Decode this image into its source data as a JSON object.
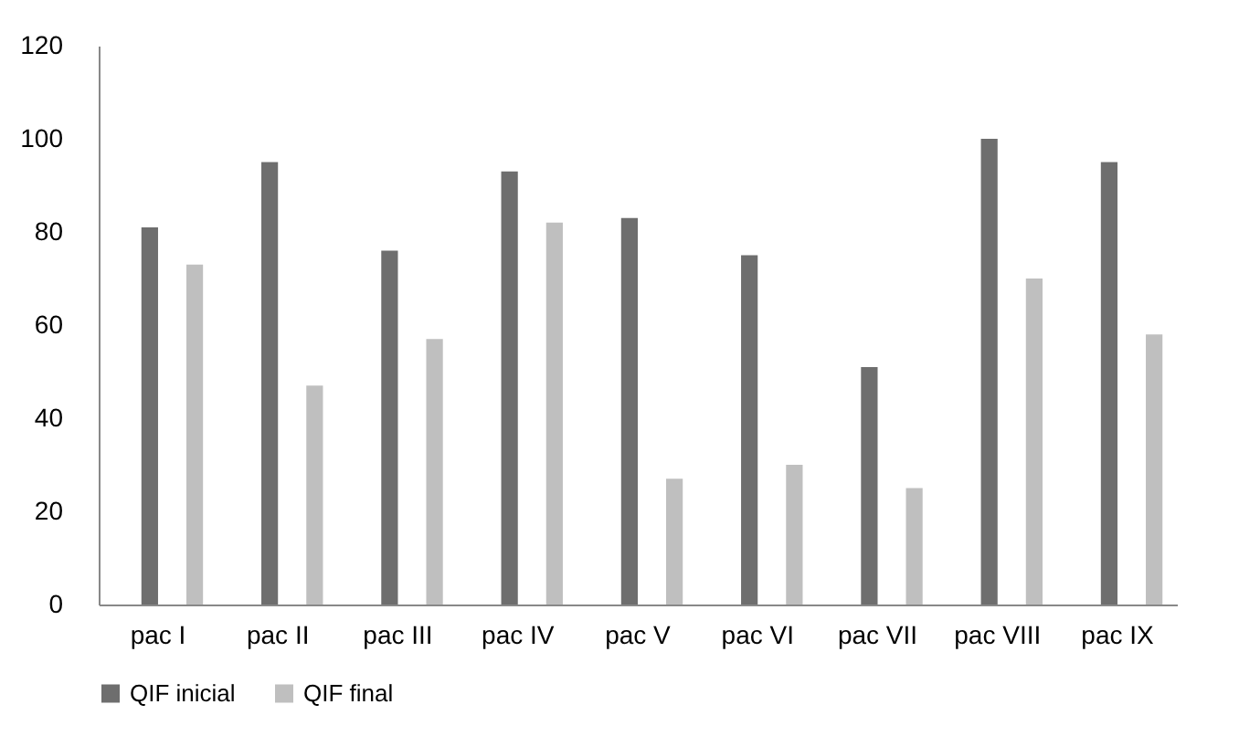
{
  "chart_data": {
    "type": "bar",
    "categories": [
      "pac I",
      "pac II",
      "pac III",
      "pac IV",
      "pac V",
      "pac VI",
      "pac VII",
      "pac VIII",
      "pac IX"
    ],
    "series": [
      {
        "name": "QIF inicial",
        "color": "#6e6e6e",
        "values": [
          81,
          95,
          76,
          93,
          83,
          75,
          51,
          100,
          95
        ]
      },
      {
        "name": "QIF final",
        "color": "#bfbfbf",
        "values": [
          73,
          47,
          57,
          82,
          27,
          30,
          25,
          70,
          58
        ]
      }
    ],
    "ylim": [
      0,
      120
    ],
    "yticks": [
      0,
      20,
      40,
      60,
      80,
      100,
      120
    ],
    "grid": false,
    "legend": "bottom"
  }
}
